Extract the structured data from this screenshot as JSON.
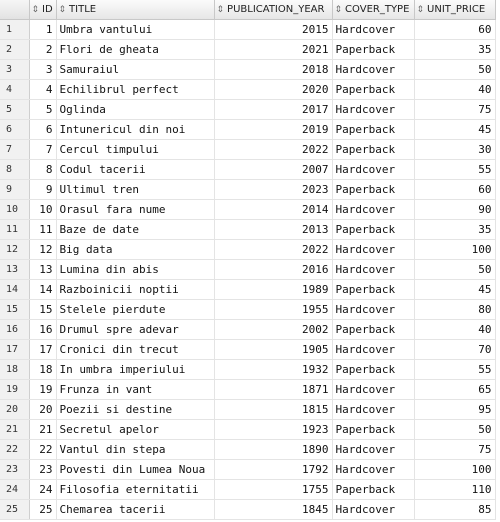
{
  "columns": [
    {
      "label": "ID"
    },
    {
      "label": "TITLE"
    },
    {
      "label": "PUBLICATION_YEAR"
    },
    {
      "label": "COVER_TYPE"
    },
    {
      "label": "UNIT_PRICE"
    }
  ],
  "rows": [
    {
      "rn": "1",
      "id": "1",
      "title": "Umbra vantului",
      "year": "2015",
      "cover": "Hardcover",
      "price": "60"
    },
    {
      "rn": "2",
      "id": "2",
      "title": "Flori de gheata",
      "year": "2021",
      "cover": "Paperback",
      "price": "35"
    },
    {
      "rn": "3",
      "id": "3",
      "title": "Samuraiul",
      "year": "2018",
      "cover": "Hardcover",
      "price": "50"
    },
    {
      "rn": "4",
      "id": "4",
      "title": "Echilibrul perfect",
      "year": "2020",
      "cover": "Paperback",
      "price": "40"
    },
    {
      "rn": "5",
      "id": "5",
      "title": "Oglinda",
      "year": "2017",
      "cover": "Hardcover",
      "price": "75"
    },
    {
      "rn": "6",
      "id": "6",
      "title": "Intunericul din noi",
      "year": "2019",
      "cover": "Paperback",
      "price": "45"
    },
    {
      "rn": "7",
      "id": "7",
      "title": "Cercul timpului",
      "year": "2022",
      "cover": "Paperback",
      "price": "30"
    },
    {
      "rn": "8",
      "id": "8",
      "title": "Codul tacerii",
      "year": "2007",
      "cover": "Hardcover",
      "price": "55"
    },
    {
      "rn": "9",
      "id": "9",
      "title": "Ultimul tren",
      "year": "2023",
      "cover": "Paperback",
      "price": "60"
    },
    {
      "rn": "10",
      "id": "10",
      "title": "Orasul fara nume",
      "year": "2014",
      "cover": "Hardcover",
      "price": "90"
    },
    {
      "rn": "11",
      "id": "11",
      "title": "Baze de date",
      "year": "2013",
      "cover": "Paperback",
      "price": "35"
    },
    {
      "rn": "12",
      "id": "12",
      "title": "Big data",
      "year": "2022",
      "cover": "Hardcover",
      "price": "100"
    },
    {
      "rn": "13",
      "id": "13",
      "title": "Lumina din abis",
      "year": "2016",
      "cover": "Hardcover",
      "price": "50"
    },
    {
      "rn": "14",
      "id": "14",
      "title": "Razboinicii noptii",
      "year": "1989",
      "cover": "Paperback",
      "price": "45"
    },
    {
      "rn": "15",
      "id": "15",
      "title": "Stelele pierdute",
      "year": "1955",
      "cover": "Hardcover",
      "price": "80"
    },
    {
      "rn": "16",
      "id": "16",
      "title": "Drumul spre adevar",
      "year": "2002",
      "cover": "Paperback",
      "price": "40"
    },
    {
      "rn": "17",
      "id": "17",
      "title": "Cronici din trecut",
      "year": "1905",
      "cover": "Hardcover",
      "price": "70"
    },
    {
      "rn": "18",
      "id": "18",
      "title": "In umbra imperiului",
      "year": "1932",
      "cover": "Paperback",
      "price": "55"
    },
    {
      "rn": "19",
      "id": "19",
      "title": "Frunza in vant",
      "year": "1871",
      "cover": "Hardcover",
      "price": "65"
    },
    {
      "rn": "20",
      "id": "20",
      "title": "Poezii si destine",
      "year": "1815",
      "cover": "Hardcover",
      "price": "95"
    },
    {
      "rn": "21",
      "id": "21",
      "title": "Secretul apelor",
      "year": "1923",
      "cover": "Paperback",
      "price": "50"
    },
    {
      "rn": "22",
      "id": "22",
      "title": "Vantul din stepa",
      "year": "1890",
      "cover": "Hardcover",
      "price": "75"
    },
    {
      "rn": "23",
      "id": "23",
      "title": "Povesti din Lumea Noua",
      "year": "1792",
      "cover": "Hardcover",
      "price": "100"
    },
    {
      "rn": "24",
      "id": "24",
      "title": "Filosofia eternitatii",
      "year": "1755",
      "cover": "Paperback",
      "price": "110"
    },
    {
      "rn": "25",
      "id": "25",
      "title": "Chemarea tacerii",
      "year": "1845",
      "cover": "Hardcover",
      "price": "85"
    }
  ]
}
